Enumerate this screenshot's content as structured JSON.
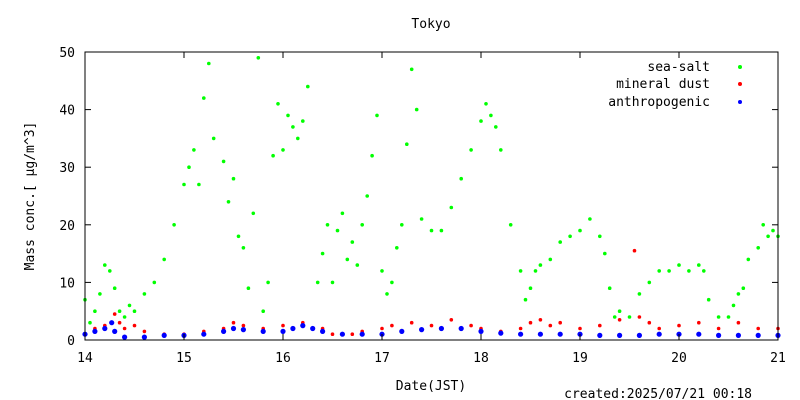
{
  "chart_data": {
    "type": "scatter",
    "title": "Tokyo",
    "xlabel": "Date(JST)",
    "ylabel": "Mass conc.[ μg/m^3]",
    "footer": "created:2025/07/21 00:18",
    "xlim": [
      14,
      21
    ],
    "ylim": [
      0,
      50
    ],
    "xticks": [
      "14",
      "15",
      "16",
      "17",
      "18",
      "19",
      "20",
      "21"
    ],
    "yticks": [
      "0",
      "10",
      "20",
      "30",
      "40",
      "50"
    ],
    "grid": false,
    "legend_position": "top-right",
    "series": [
      {
        "name": "sea-salt",
        "color": "#00ff00",
        "points": [
          [
            14.0,
            7.0
          ],
          [
            14.05,
            3.0
          ],
          [
            14.1,
            5.0
          ],
          [
            14.15,
            8.0
          ],
          [
            14.2,
            13.0
          ],
          [
            14.25,
            12.0
          ],
          [
            14.3,
            9.0
          ],
          [
            14.35,
            5.0
          ],
          [
            14.4,
            4.0
          ],
          [
            14.45,
            6.0
          ],
          [
            14.5,
            5.0
          ],
          [
            14.6,
            8.0
          ],
          [
            14.7,
            10.0
          ],
          [
            14.8,
            14.0
          ],
          [
            14.9,
            20.0
          ],
          [
            15.0,
            27.0
          ],
          [
            15.05,
            30.0
          ],
          [
            15.1,
            33.0
          ],
          [
            15.15,
            27.0
          ],
          [
            15.2,
            42.0
          ],
          [
            15.25,
            48.0
          ],
          [
            15.3,
            35.0
          ],
          [
            15.4,
            31.0
          ],
          [
            15.45,
            24.0
          ],
          [
            15.5,
            28.0
          ],
          [
            15.55,
            18.0
          ],
          [
            15.6,
            16.0
          ],
          [
            15.65,
            9.0
          ],
          [
            15.7,
            22.0
          ],
          [
            15.75,
            49.0
          ],
          [
            15.8,
            5.0
          ],
          [
            15.85,
            10.0
          ],
          [
            15.9,
            32.0
          ],
          [
            15.95,
            41.0
          ],
          [
            16.0,
            33.0
          ],
          [
            16.05,
            39.0
          ],
          [
            16.1,
            37.0
          ],
          [
            16.15,
            35.0
          ],
          [
            16.2,
            38.0
          ],
          [
            16.25,
            44.0
          ],
          [
            16.3,
            2.0
          ],
          [
            16.35,
            10.0
          ],
          [
            16.4,
            15.0
          ],
          [
            16.45,
            20.0
          ],
          [
            16.5,
            10.0
          ],
          [
            16.55,
            19.0
          ],
          [
            16.6,
            22.0
          ],
          [
            16.65,
            14.0
          ],
          [
            16.7,
            17.0
          ],
          [
            16.75,
            13.0
          ],
          [
            16.8,
            20.0
          ],
          [
            16.85,
            25.0
          ],
          [
            16.9,
            32.0
          ],
          [
            16.95,
            39.0
          ],
          [
            17.0,
            12.0
          ],
          [
            17.05,
            8.0
          ],
          [
            17.1,
            10.0
          ],
          [
            17.15,
            16.0
          ],
          [
            17.2,
            20.0
          ],
          [
            17.25,
            34.0
          ],
          [
            17.3,
            47.0
          ],
          [
            17.35,
            40.0
          ],
          [
            17.4,
            21.0
          ],
          [
            17.5,
            19.0
          ],
          [
            17.6,
            19.0
          ],
          [
            17.7,
            23.0
          ],
          [
            17.8,
            28.0
          ],
          [
            17.9,
            33.0
          ],
          [
            18.0,
            38.0
          ],
          [
            18.05,
            41.0
          ],
          [
            18.1,
            39.0
          ],
          [
            18.15,
            37.0
          ],
          [
            18.2,
            33.0
          ],
          [
            18.3,
            20.0
          ],
          [
            18.4,
            12.0
          ],
          [
            18.45,
            7.0
          ],
          [
            18.5,
            9.0
          ],
          [
            18.55,
            12.0
          ],
          [
            18.6,
            13.0
          ],
          [
            18.7,
            14.0
          ],
          [
            18.8,
            17.0
          ],
          [
            18.9,
            18.0
          ],
          [
            19.0,
            19.0
          ],
          [
            19.1,
            21.0
          ],
          [
            19.2,
            18.0
          ],
          [
            19.25,
            15.0
          ],
          [
            19.3,
            9.0
          ],
          [
            19.35,
            4.0
          ],
          [
            19.4,
            5.0
          ],
          [
            19.5,
            4.0
          ],
          [
            19.6,
            8.0
          ],
          [
            19.7,
            10.0
          ],
          [
            19.8,
            12.0
          ],
          [
            19.9,
            12.0
          ],
          [
            20.0,
            13.0
          ],
          [
            20.1,
            12.0
          ],
          [
            20.2,
            13.0
          ],
          [
            20.25,
            12.0
          ],
          [
            20.3,
            7.0
          ],
          [
            20.4,
            4.0
          ],
          [
            20.5,
            4.0
          ],
          [
            20.55,
            6.0
          ],
          [
            20.6,
            8.0
          ],
          [
            20.65,
            9.0
          ],
          [
            20.7,
            14.0
          ],
          [
            20.8,
            16.0
          ],
          [
            20.85,
            20.0
          ],
          [
            20.9,
            18.0
          ],
          [
            20.95,
            19.0
          ],
          [
            21.0,
            18.0
          ]
        ]
      },
      {
        "name": "mineral dust",
        "color": "#ff0000",
        "points": [
          [
            14.0,
            1.0
          ],
          [
            14.1,
            2.0
          ],
          [
            14.2,
            2.5
          ],
          [
            14.3,
            4.5
          ],
          [
            14.35,
            3.0
          ],
          [
            14.4,
            2.0
          ],
          [
            14.5,
            2.5
          ],
          [
            14.6,
            1.5
          ],
          [
            14.8,
            1.0
          ],
          [
            15.0,
            1.0
          ],
          [
            15.2,
            1.5
          ],
          [
            15.4,
            2.0
          ],
          [
            15.5,
            3.0
          ],
          [
            15.6,
            2.5
          ],
          [
            15.8,
            2.0
          ],
          [
            16.0,
            2.5
          ],
          [
            16.2,
            3.0
          ],
          [
            16.4,
            2.0
          ],
          [
            16.5,
            1.0
          ],
          [
            16.7,
            1.0
          ],
          [
            16.8,
            1.5
          ],
          [
            17.0,
            2.0
          ],
          [
            17.1,
            2.5
          ],
          [
            17.3,
            3.0
          ],
          [
            17.5,
            2.5
          ],
          [
            17.7,
            3.5
          ],
          [
            17.9,
            2.5
          ],
          [
            18.0,
            2.0
          ],
          [
            18.2,
            1.5
          ],
          [
            18.4,
            2.0
          ],
          [
            18.5,
            3.0
          ],
          [
            18.6,
            3.5
          ],
          [
            18.7,
            2.5
          ],
          [
            18.8,
            3.0
          ],
          [
            19.0,
            2.0
          ],
          [
            19.2,
            2.5
          ],
          [
            19.4,
            3.5
          ],
          [
            19.55,
            15.5
          ],
          [
            19.6,
            4.0
          ],
          [
            19.7,
            3.0
          ],
          [
            19.8,
            2.0
          ],
          [
            20.0,
            2.5
          ],
          [
            20.2,
            3.0
          ],
          [
            20.4,
            2.0
          ],
          [
            20.6,
            3.0
          ],
          [
            20.8,
            2.0
          ],
          [
            21.0,
            2.0
          ]
        ]
      },
      {
        "name": "anthropogenic",
        "color": "#0000ff",
        "points": [
          [
            14.0,
            1.0
          ],
          [
            14.1,
            1.5
          ],
          [
            14.2,
            2.0
          ],
          [
            14.27,
            3.0
          ],
          [
            14.3,
            1.5
          ],
          [
            14.4,
            0.5
          ],
          [
            14.6,
            0.5
          ],
          [
            14.8,
            0.8
          ],
          [
            15.0,
            0.8
          ],
          [
            15.2,
            1.0
          ],
          [
            15.4,
            1.5
          ],
          [
            15.5,
            2.0
          ],
          [
            15.6,
            1.8
          ],
          [
            15.8,
            1.5
          ],
          [
            16.0,
            1.5
          ],
          [
            16.1,
            2.0
          ],
          [
            16.2,
            2.5
          ],
          [
            16.3,
            2.0
          ],
          [
            16.4,
            1.5
          ],
          [
            16.6,
            1.0
          ],
          [
            16.8,
            1.0
          ],
          [
            17.0,
            1.0
          ],
          [
            17.2,
            1.5
          ],
          [
            17.4,
            1.8
          ],
          [
            17.6,
            2.0
          ],
          [
            17.8,
            2.0
          ],
          [
            18.0,
            1.5
          ],
          [
            18.2,
            1.2
          ],
          [
            18.4,
            1.0
          ],
          [
            18.6,
            1.0
          ],
          [
            18.8,
            1.0
          ],
          [
            19.0,
            1.0
          ],
          [
            19.2,
            0.8
          ],
          [
            19.4,
            0.8
          ],
          [
            19.6,
            0.8
          ],
          [
            19.8,
            1.0
          ],
          [
            20.0,
            1.0
          ],
          [
            20.2,
            1.0
          ],
          [
            20.4,
            0.8
          ],
          [
            20.6,
            0.8
          ],
          [
            20.8,
            0.8
          ],
          [
            21.0,
            0.8
          ]
        ]
      }
    ]
  }
}
